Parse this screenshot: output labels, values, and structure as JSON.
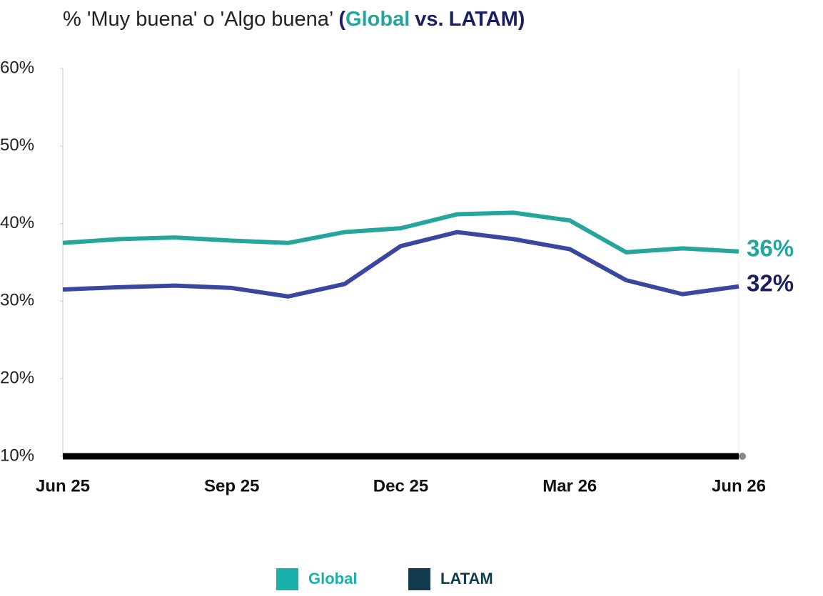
{
  "chart_data": {
    "type": "line",
    "title_parts": [
      {
        "text": "% 'Muy buena' o 'Algo buena’",
        "color": "#222222",
        "bold": false
      },
      {
        "text": "(",
        "color": "#1b1f5e",
        "bold": true
      },
      {
        "text": "Global",
        "color": "#22a79f",
        "bold": true
      },
      {
        "text": "vs.",
        "color": "#1b1f5e",
        "bold": true
      },
      {
        "text": "LATAM",
        "color": "#1b1f5e",
        "bold": true
      },
      {
        "text": ")",
        "color": "#1b1f5e",
        "bold": true
      }
    ],
    "categories": [
      "Jun 25",
      null,
      null,
      "Sep 25",
      null,
      null,
      "Dec 25",
      null,
      null,
      "Mar 26",
      null,
      null,
      "Jun 26"
    ],
    "series": [
      {
        "name": "Global",
        "color": "#26a69a",
        "legend_color": "#1ab0ab",
        "end_label": "36%",
        "end_label_color": "#22a79f",
        "values": [
          37.5,
          38.0,
          38.2,
          37.8,
          37.5,
          38.9,
          39.4,
          41.2,
          41.4,
          40.4,
          36.3,
          36.8,
          36.4
        ]
      },
      {
        "name": "LATAM",
        "color": "#3a47a0",
        "legend_color": "#133b50",
        "end_label": "32%",
        "end_label_color": "#1b1f5e",
        "values": [
          31.5,
          31.8,
          32.0,
          31.7,
          30.6,
          32.2,
          37.1,
          38.9,
          38.0,
          36.7,
          32.7,
          30.9,
          31.9
        ]
      }
    ],
    "ylim": [
      10,
      60
    ],
    "yticks": [
      {
        "value": 10,
        "label": "10%"
      },
      {
        "value": 20,
        "label": "20%"
      },
      {
        "value": 30,
        "label": "30%"
      },
      {
        "value": 40,
        "label": "40%"
      },
      {
        "value": 50,
        "label": "50%"
      },
      {
        "value": 60,
        "label": "60%"
      }
    ],
    "grid": false
  }
}
